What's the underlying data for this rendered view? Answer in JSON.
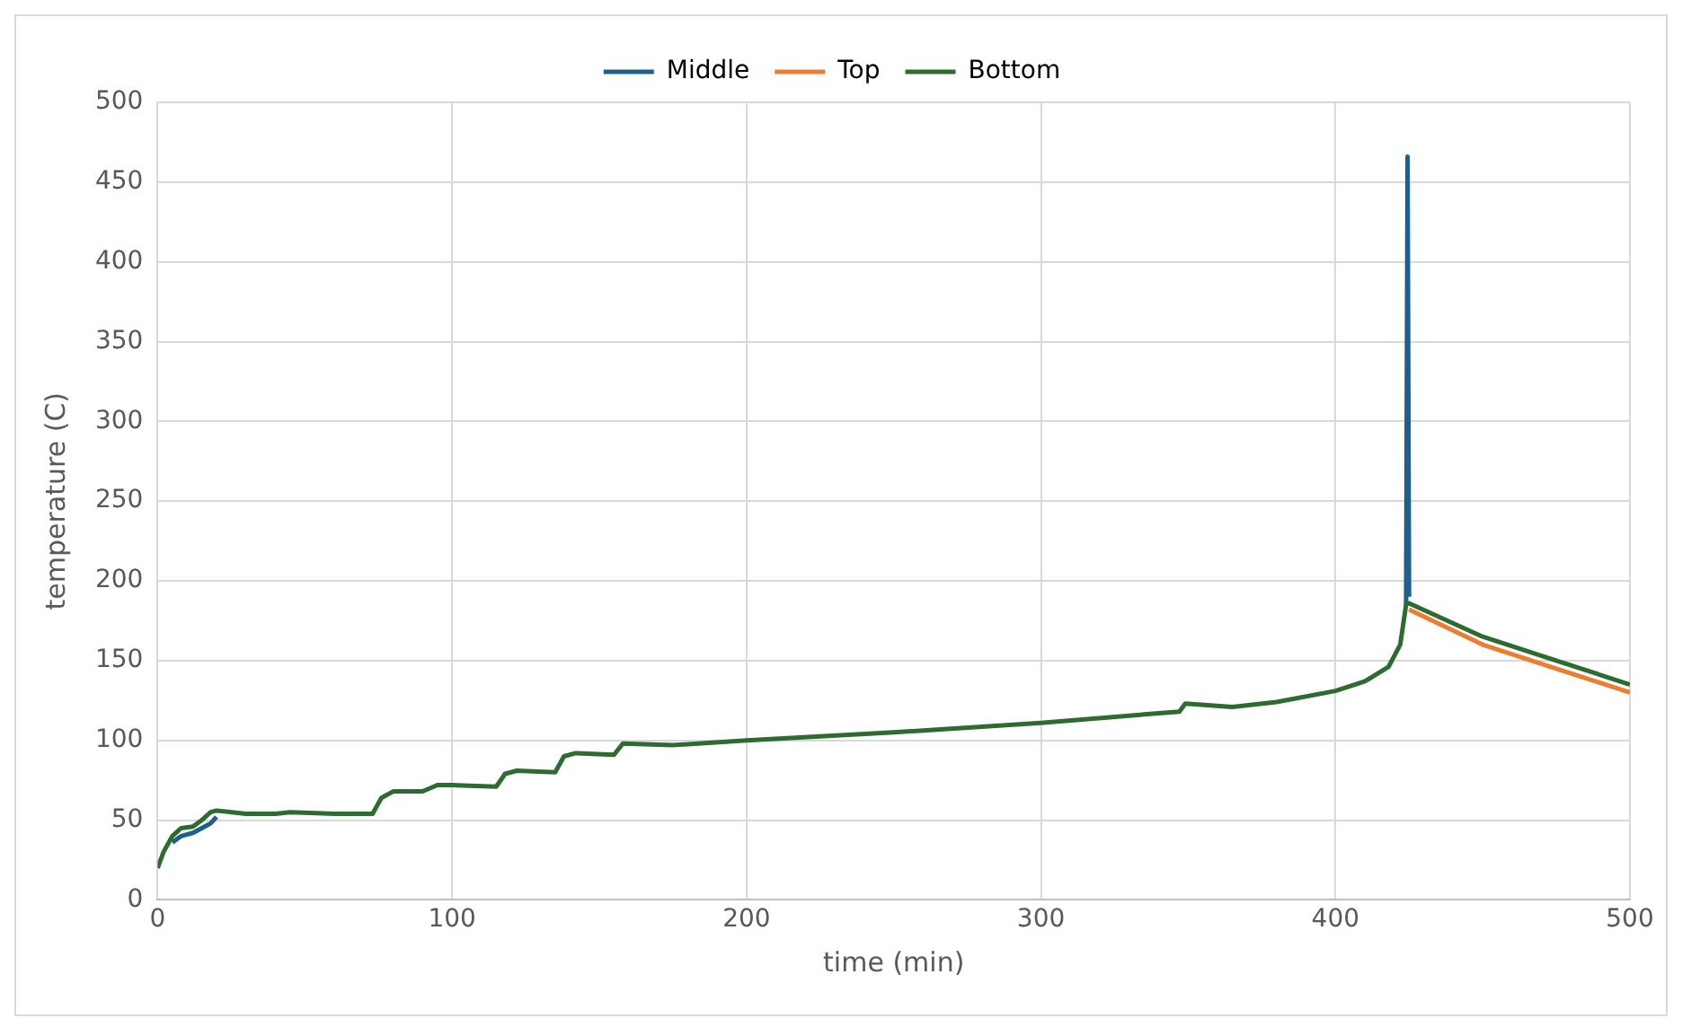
{
  "chart_data": {
    "type": "line",
    "xlabel": "time (min)",
    "ylabel": "temperature (C)",
    "x": [
      0,
      2,
      5,
      8,
      12,
      15,
      18,
      20,
      25,
      30,
      40,
      45,
      60,
      73,
      76,
      80,
      90,
      95,
      100,
      115,
      118,
      122,
      135,
      138,
      142,
      155,
      158,
      175,
      200,
      250,
      300,
      340,
      347,
      349,
      365,
      380,
      400,
      410,
      418,
      422,
      424,
      424.5,
      425,
      450,
      475,
      500
    ],
    "series": [
      {
        "name": "Middle",
        "color": "#1f5f8b",
        "values": [
          null,
          null,
          36,
          40,
          42,
          45,
          48,
          52,
          null,
          null,
          null,
          null,
          null,
          null,
          null,
          null,
          null,
          null,
          null,
          null,
          null,
          null,
          null,
          null,
          null,
          null,
          null,
          null,
          null,
          null,
          null,
          null,
          null,
          null,
          null,
          null,
          null,
          null,
          null,
          null,
          185,
          466,
          190,
          null,
          null,
          null
        ]
      },
      {
        "name": "Top",
        "color": "#ed7d31",
        "values": [
          null,
          null,
          null,
          null,
          null,
          null,
          null,
          null,
          null,
          null,
          null,
          null,
          null,
          null,
          null,
          null,
          null,
          null,
          null,
          null,
          null,
          null,
          null,
          null,
          null,
          null,
          null,
          null,
          null,
          null,
          null,
          null,
          null,
          null,
          null,
          null,
          null,
          null,
          null,
          null,
          null,
          null,
          182,
          160,
          145,
          130
        ]
      },
      {
        "name": "Bottom",
        "color": "#2e6b30",
        "values": [
          20,
          30,
          40,
          45,
          46,
          50,
          55,
          56,
          55,
          54,
          54,
          55,
          54,
          54,
          64,
          68,
          68,
          72,
          72,
          71,
          79,
          81,
          80,
          90,
          92,
          91,
          98,
          97,
          100,
          105,
          111,
          117,
          118,
          123,
          121,
          124,
          131,
          137,
          146,
          160,
          185,
          186,
          186,
          165,
          150,
          135
        ]
      }
    ],
    "xlim": [
      0,
      500
    ],
    "xticks": [
      0,
      100,
      200,
      300,
      400,
      500
    ],
    "ylim": [
      0,
      500
    ],
    "yticks": [
      0,
      50,
      100,
      150,
      200,
      250,
      300,
      350,
      400,
      450,
      500
    ],
    "grid": true,
    "legend": "top",
    "marker": "none",
    "line_style": "solid"
  }
}
